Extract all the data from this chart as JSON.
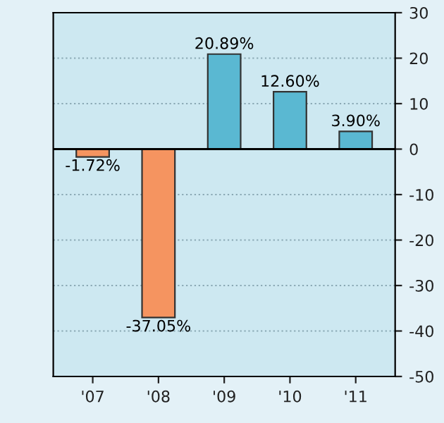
{
  "chart_data": {
    "type": "bar",
    "categories": [
      "'07",
      "'08",
      "'09",
      "'10",
      "'11"
    ],
    "values": [
      -1.72,
      -37.05,
      20.89,
      12.6,
      3.9
    ],
    "value_labels": [
      "-1.72%",
      "-37.05%",
      "20.89%",
      "12.60%",
      "3.90%"
    ],
    "colors": [
      "#f59460",
      "#f59460",
      "#5ab8d2",
      "#5ab8d2",
      "#5ab8d2"
    ],
    "ylim": [
      -50,
      30
    ],
    "yticks": [
      -50,
      -40,
      -30,
      -20,
      -10,
      0,
      10,
      20,
      30
    ],
    "grid": "y",
    "ref_lines": [
      {
        "axis": "y",
        "value": 0,
        "color": "#000000"
      }
    ]
  }
}
